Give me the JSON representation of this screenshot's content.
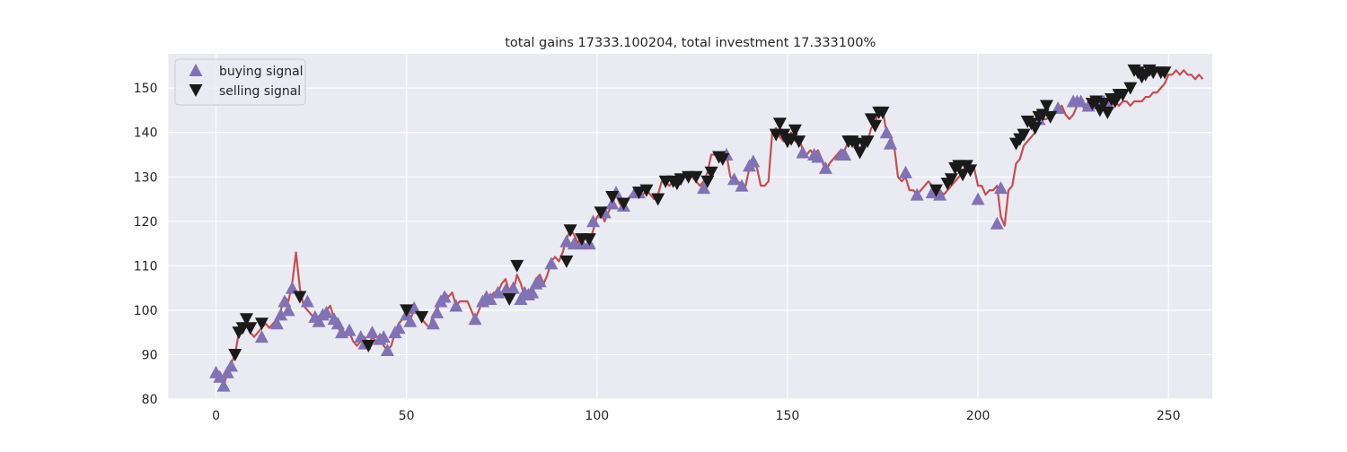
{
  "chart_data": {
    "type": "line",
    "title": "total gains 17333.100204, total investment 17.333100%",
    "xlabel": "",
    "ylabel": "",
    "xlim": [
      -12.5,
      261.5
    ],
    "ylim": [
      80,
      157.7
    ],
    "xticks": [
      0,
      50,
      100,
      150,
      200,
      250
    ],
    "yticks": [
      80,
      90,
      100,
      110,
      120,
      130,
      140,
      150
    ],
    "grid": true,
    "legend_position": "upper-left",
    "colors": {
      "background": "#eaeaf2",
      "grid": "#ffffff",
      "price_line": "#c44e52",
      "buy_marker": "#8172b3",
      "sell_marker": "#1a1a1a"
    },
    "series": [
      {
        "name": "buying signal",
        "marker": "triangle-up",
        "points": [
          [
            0,
            86
          ],
          [
            1,
            85
          ],
          [
            2,
            83
          ],
          [
            3,
            86
          ],
          [
            4,
            87.5
          ],
          [
            12,
            94
          ],
          [
            16,
            97
          ],
          [
            17,
            99
          ],
          [
            18,
            102
          ],
          [
            19,
            100
          ],
          [
            20,
            105
          ],
          [
            24,
            102
          ],
          [
            26,
            98.5
          ],
          [
            27,
            97.5
          ],
          [
            28,
            99
          ],
          [
            29,
            99.5
          ],
          [
            31,
            98
          ],
          [
            32,
            97
          ],
          [
            33,
            95
          ],
          [
            35,
            95.5
          ],
          [
            38,
            94
          ],
          [
            39,
            92.5
          ],
          [
            41,
            95
          ],
          [
            43,
            93.5
          ],
          [
            44,
            94
          ],
          [
            45,
            91
          ],
          [
            47,
            95
          ],
          [
            48,
            96
          ],
          [
            50,
            99
          ],
          [
            51,
            97.5
          ],
          [
            52,
            100.5
          ],
          [
            57,
            97
          ],
          [
            58,
            99.5
          ],
          [
            59,
            102
          ],
          [
            60,
            103
          ],
          [
            63,
            101
          ],
          [
            68,
            98
          ],
          [
            70,
            102
          ],
          [
            71,
            103
          ],
          [
            72,
            102.5
          ],
          [
            74,
            104
          ],
          [
            76,
            104.5
          ],
          [
            78,
            105
          ],
          [
            80,
            102.5
          ],
          [
            81,
            104
          ],
          [
            82,
            103.5
          ],
          [
            83,
            104
          ],
          [
            84,
            106
          ],
          [
            85,
            106.5
          ],
          [
            88,
            110.5
          ],
          [
            92,
            115.5
          ],
          [
            94,
            115
          ],
          [
            96,
            115
          ],
          [
            98,
            115
          ],
          [
            99,
            120
          ],
          [
            102,
            122
          ],
          [
            104,
            124
          ],
          [
            105,
            126.5
          ],
          [
            107,
            123.5
          ],
          [
            110,
            126.5
          ],
          [
            111,
            126.5
          ],
          [
            128,
            127.5
          ],
          [
            134,
            135
          ],
          [
            136,
            129.5
          ],
          [
            138,
            128
          ],
          [
            140,
            132.5
          ],
          [
            141,
            133.5
          ],
          [
            154,
            135.5
          ],
          [
            157,
            135
          ],
          [
            158,
            134.5
          ],
          [
            160,
            132
          ],
          [
            164,
            135
          ],
          [
            165,
            135
          ],
          [
            176,
            140
          ],
          [
            177,
            137.5
          ],
          [
            181,
            131
          ],
          [
            184,
            126
          ],
          [
            188,
            126.5
          ],
          [
            190,
            126
          ],
          [
            200,
            125
          ],
          [
            205,
            119.5
          ],
          [
            206,
            127.5
          ],
          [
            216,
            143
          ],
          [
            221,
            145.5
          ],
          [
            225,
            147
          ],
          [
            226,
            147
          ],
          [
            227,
            147
          ],
          [
            229,
            146
          ],
          [
            230,
            146.5
          ],
          [
            232,
            146.5
          ],
          [
            233,
            147
          ],
          [
            234,
            146.5
          ]
        ]
      },
      {
        "name": "selling signal",
        "marker": "triangle-down",
        "points": [
          [
            5,
            90
          ],
          [
            6,
            95
          ],
          [
            7,
            96
          ],
          [
            8,
            98
          ],
          [
            9,
            96
          ],
          [
            12,
            97
          ],
          [
            22,
            103
          ],
          [
            40,
            92
          ],
          [
            50,
            100
          ],
          [
            54,
            98.5
          ],
          [
            77,
            102.5
          ],
          [
            79,
            110
          ],
          [
            92,
            111
          ],
          [
            93,
            118
          ],
          [
            96,
            116
          ],
          [
            98,
            116
          ],
          [
            101,
            122
          ],
          [
            104,
            125.5
          ],
          [
            107,
            124
          ],
          [
            111,
            126.5
          ],
          [
            113,
            127
          ],
          [
            116,
            125
          ],
          [
            118,
            129
          ],
          [
            120,
            129
          ],
          [
            121,
            128.5
          ],
          [
            122,
            129.5
          ],
          [
            124,
            130
          ],
          [
            126,
            130
          ],
          [
            129,
            129
          ],
          [
            130,
            131
          ],
          [
            132,
            134.5
          ],
          [
            133,
            134
          ],
          [
            147,
            139.5
          ],
          [
            148,
            142
          ],
          [
            149,
            139.5
          ],
          [
            150,
            138
          ],
          [
            151,
            138.5
          ],
          [
            152,
            140.5
          ],
          [
            153,
            138
          ],
          [
            166,
            138
          ],
          [
            167,
            138
          ],
          [
            168,
            137.5
          ],
          [
            169,
            135.5
          ],
          [
            170,
            137.5
          ],
          [
            171,
            138
          ],
          [
            172,
            143
          ],
          [
            173,
            141.5
          ],
          [
            174,
            144.5
          ],
          [
            175,
            144.5
          ],
          [
            189,
            127
          ],
          [
            192,
            128.5
          ],
          [
            193,
            129.5
          ],
          [
            194,
            132
          ],
          [
            195,
            132.5
          ],
          [
            196,
            130.5
          ],
          [
            197,
            132.5
          ],
          [
            198,
            131.5
          ],
          [
            210,
            137.5
          ],
          [
            211,
            138.5
          ],
          [
            212,
            139.5
          ],
          [
            213,
            142.5
          ],
          [
            214,
            142
          ],
          [
            215,
            141
          ],
          [
            216,
            143.5
          ],
          [
            217,
            144
          ],
          [
            218,
            146
          ],
          [
            219,
            143.5
          ],
          [
            230,
            146.5
          ],
          [
            231,
            147
          ],
          [
            232,
            145
          ],
          [
            233,
            146.5
          ],
          [
            234,
            144.5
          ],
          [
            235,
            147.5
          ],
          [
            236,
            147
          ],
          [
            237,
            148.5
          ],
          [
            238,
            148.5
          ],
          [
            240,
            150
          ],
          [
            241,
            154
          ],
          [
            242,
            153.5
          ],
          [
            243,
            152.5
          ],
          [
            244,
            153
          ],
          [
            245,
            154
          ],
          [
            246,
            153.5
          ],
          [
            248,
            153.5
          ],
          [
            249,
            153.5
          ]
        ]
      }
    ],
    "price_series": {
      "x_start": 0,
      "values": [
        86,
        85,
        83,
        86,
        88,
        90,
        95,
        96,
        97,
        95,
        94,
        95,
        96,
        97,
        96,
        97,
        98,
        100,
        103,
        102,
        106,
        113,
        105,
        101,
        100,
        99,
        98,
        97,
        99,
        100,
        101,
        98,
        96,
        95,
        94,
        95,
        93,
        92,
        93,
        94,
        92,
        94,
        93,
        94,
        92,
        91,
        92,
        95,
        97,
        98,
        99,
        98,
        100,
        99,
        98,
        97,
        96,
        99,
        100,
        102,
        104,
        103,
        104,
        101,
        102,
        102,
        102,
        100,
        98,
        100,
        102,
        103,
        103,
        104,
        104,
        106,
        107,
        104,
        104,
        108,
        106,
        103,
        104,
        105,
        107,
        108,
        106,
        108,
        111,
        112,
        111,
        113,
        116,
        118,
        117,
        115,
        117,
        116,
        115,
        118,
        121,
        122,
        120,
        122,
        124,
        126,
        124,
        123,
        125,
        126,
        127,
        127,
        126,
        127,
        126,
        125,
        126,
        129,
        129,
        128,
        129,
        128,
        129,
        131,
        131,
        130,
        129,
        128,
        129,
        131,
        135,
        135,
        134,
        135,
        135,
        130,
        129,
        129,
        128,
        128,
        132,
        133,
        132,
        128,
        128,
        129,
        140,
        141,
        139,
        138,
        138,
        140,
        138,
        139,
        136,
        135,
        136,
        135,
        136,
        134,
        131,
        133,
        134,
        135,
        136,
        136,
        138,
        138,
        138,
        136,
        138,
        138,
        141,
        142,
        145,
        145,
        140,
        139,
        137,
        130,
        129,
        130,
        127,
        127,
        126,
        127,
        128,
        129,
        128,
        126,
        127,
        126,
        127,
        128,
        129,
        130,
        131,
        133,
        132,
        132,
        128,
        128,
        126,
        127,
        127,
        128,
        121,
        119,
        127,
        128,
        133,
        134,
        137,
        138,
        139,
        140,
        142,
        143,
        143,
        144,
        144,
        145,
        146,
        144,
        143,
        144,
        146,
        147,
        145,
        147,
        146,
        147,
        147,
        148,
        147,
        146,
        147,
        146,
        147,
        147,
        146,
        147,
        147,
        147,
        148,
        148,
        149,
        149,
        150,
        151,
        153,
        153,
        154,
        153,
        154,
        153,
        153,
        152,
        153,
        152
      ]
    }
  }
}
